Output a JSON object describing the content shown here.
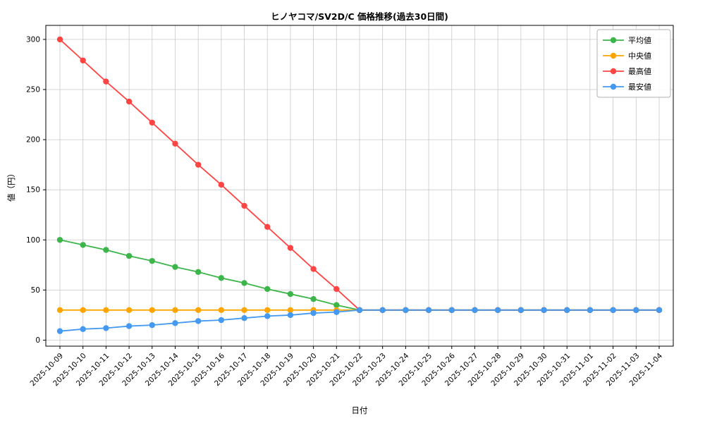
{
  "chart_data": {
    "type": "line",
    "title": "ヒノヤコマ/SV2D/C 価格推移(過去30日間)",
    "xlabel": "日付",
    "ylabel": "値（円）",
    "ylim": [
      0,
      300
    ],
    "yticks": [
      0,
      50,
      100,
      150,
      200,
      250,
      300
    ],
    "grid": true,
    "legend_position": "upper right",
    "categories": [
      "2025-10-09",
      "2025-10-10",
      "2025-10-11",
      "2025-10-12",
      "2025-10-13",
      "2025-10-14",
      "2025-10-15",
      "2025-10-16",
      "2025-10-17",
      "2025-10-18",
      "2025-10-19",
      "2025-10-20",
      "2025-10-21",
      "2025-10-22",
      "2025-10-23",
      "2025-10-24",
      "2025-10-25",
      "2025-10-26",
      "2025-10-27",
      "2025-10-28",
      "2025-10-29",
      "2025-10-30",
      "2025-10-31",
      "2025-11-01",
      "2025-11-02",
      "2025-11-03",
      "2025-11-04"
    ],
    "series": [
      {
        "id": "average",
        "name": "平均値",
        "color": "#3cb54a",
        "values": [
          100,
          95,
          90,
          84,
          79,
          73,
          68,
          62,
          57,
          51,
          46,
          41,
          35,
          30,
          30,
          30,
          30,
          30,
          30,
          30,
          30,
          30,
          30,
          30,
          30,
          30,
          30
        ]
      },
      {
        "id": "median",
        "name": "中央値",
        "color": "#ffa502",
        "values": [
          30,
          30,
          30,
          30,
          30,
          30,
          30,
          30,
          30,
          30,
          30,
          30,
          30,
          30,
          30,
          30,
          30,
          30,
          30,
          30,
          30,
          30,
          30,
          30,
          30,
          30,
          30
        ]
      },
      {
        "id": "highest",
        "name": "最高値",
        "color": "#ff4444",
        "values": [
          300,
          279,
          258,
          238,
          217,
          196,
          175,
          155,
          134,
          113,
          92,
          71,
          51,
          30,
          30,
          30,
          30,
          30,
          30,
          30,
          30,
          30,
          30,
          30,
          30,
          30,
          30
        ]
      },
      {
        "id": "lowest",
        "name": "最安値",
        "color": "#4499f0",
        "values": [
          9,
          11,
          12,
          14,
          15,
          17,
          19,
          20,
          22,
          24,
          25,
          27,
          28,
          30,
          30,
          30,
          30,
          30,
          30,
          30,
          30,
          30,
          30,
          30,
          30,
          30,
          30
        ]
      }
    ]
  }
}
